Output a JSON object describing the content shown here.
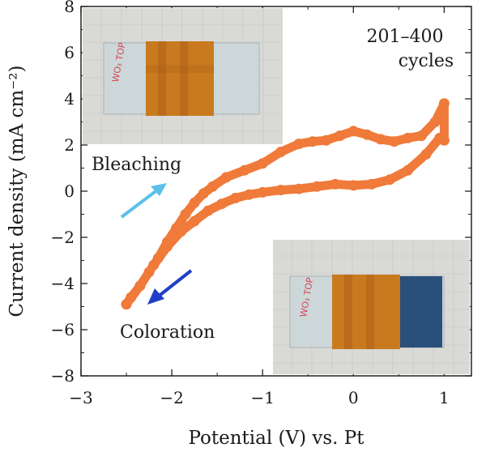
{
  "chart_data": {
    "type": "line",
    "xlabel": "Potential (V) vs. Pt",
    "ylabel": "Current density (mA cm⁻²)",
    "xlim": [
      -3,
      1.3
    ],
    "ylim": [
      -8,
      8
    ],
    "x_ticks": [
      -3,
      -2,
      -1,
      0,
      1
    ],
    "x_tick_labels": [
      "−3",
      "−2",
      "−1",
      "0",
      "1"
    ],
    "y_ticks": [
      -8,
      -6,
      -4,
      -2,
      0,
      2,
      4,
      6,
      8
    ],
    "y_tick_labels": [
      "−8",
      "−6",
      "−4",
      "−2",
      "0",
      "2",
      "4",
      "6",
      "8"
    ],
    "grid": false,
    "series_color": "#ef7a3a",
    "series": [
      {
        "x": [
          -2.5,
          -2.35,
          -2.2,
          -2.05,
          -1.9,
          -1.75,
          -1.6,
          -1.45,
          -1.3,
          -1.15,
          -1.0,
          -0.8,
          -0.6,
          -0.4,
          -0.2,
          0.0,
          0.2,
          0.4,
          0.6,
          0.8,
          0.95,
          1.0,
          1.0,
          0.9,
          0.75,
          0.6,
          0.45,
          0.3,
          0.15,
          0.0,
          -0.15,
          -0.3,
          -0.45,
          -0.6,
          -0.8,
          -1.0,
          -1.2,
          -1.4,
          -1.55,
          -1.65,
          -1.75,
          -1.85,
          -1.95,
          -2.05,
          -2.15,
          -2.25,
          -2.35,
          -2.45,
          -2.5
        ],
        "y": [
          -4.9,
          -4.1,
          -3.2,
          -2.4,
          -1.75,
          -1.3,
          -0.85,
          -0.55,
          -0.3,
          -0.15,
          -0.05,
          0.05,
          0.1,
          0.2,
          0.3,
          0.25,
          0.3,
          0.5,
          0.9,
          1.6,
          2.3,
          2.2,
          3.8,
          3.0,
          2.4,
          2.3,
          2.15,
          2.25,
          2.45,
          2.6,
          2.4,
          2.2,
          2.15,
          2.05,
          1.7,
          1.2,
          0.9,
          0.6,
          0.2,
          -0.1,
          -0.5,
          -1.0,
          -1.6,
          -2.2,
          -2.9,
          -3.5,
          -4.1,
          -4.6,
          -4.9
        ]
      }
    ]
  },
  "annotations": {
    "cycles_line1": "201–400",
    "cycles_line2": "cycles",
    "bleaching": "Bleaching",
    "coloration": "Coloration",
    "bleaching_arrow_color": "#5bc0eb",
    "coloration_arrow_color": "#1f3fc8"
  },
  "photos": {
    "top": {
      "label_text": "WO₃ TOP",
      "glass_color": "#cfd9dc",
      "film_color": "#c97a1e",
      "film_state": "bleached"
    },
    "bottom": {
      "label_text": "WO₃ TOP",
      "glass_color": "#cfd9dc",
      "film_color": "#c97a1e",
      "colored_region": "#2a4f7a",
      "film_state": "colored"
    }
  }
}
